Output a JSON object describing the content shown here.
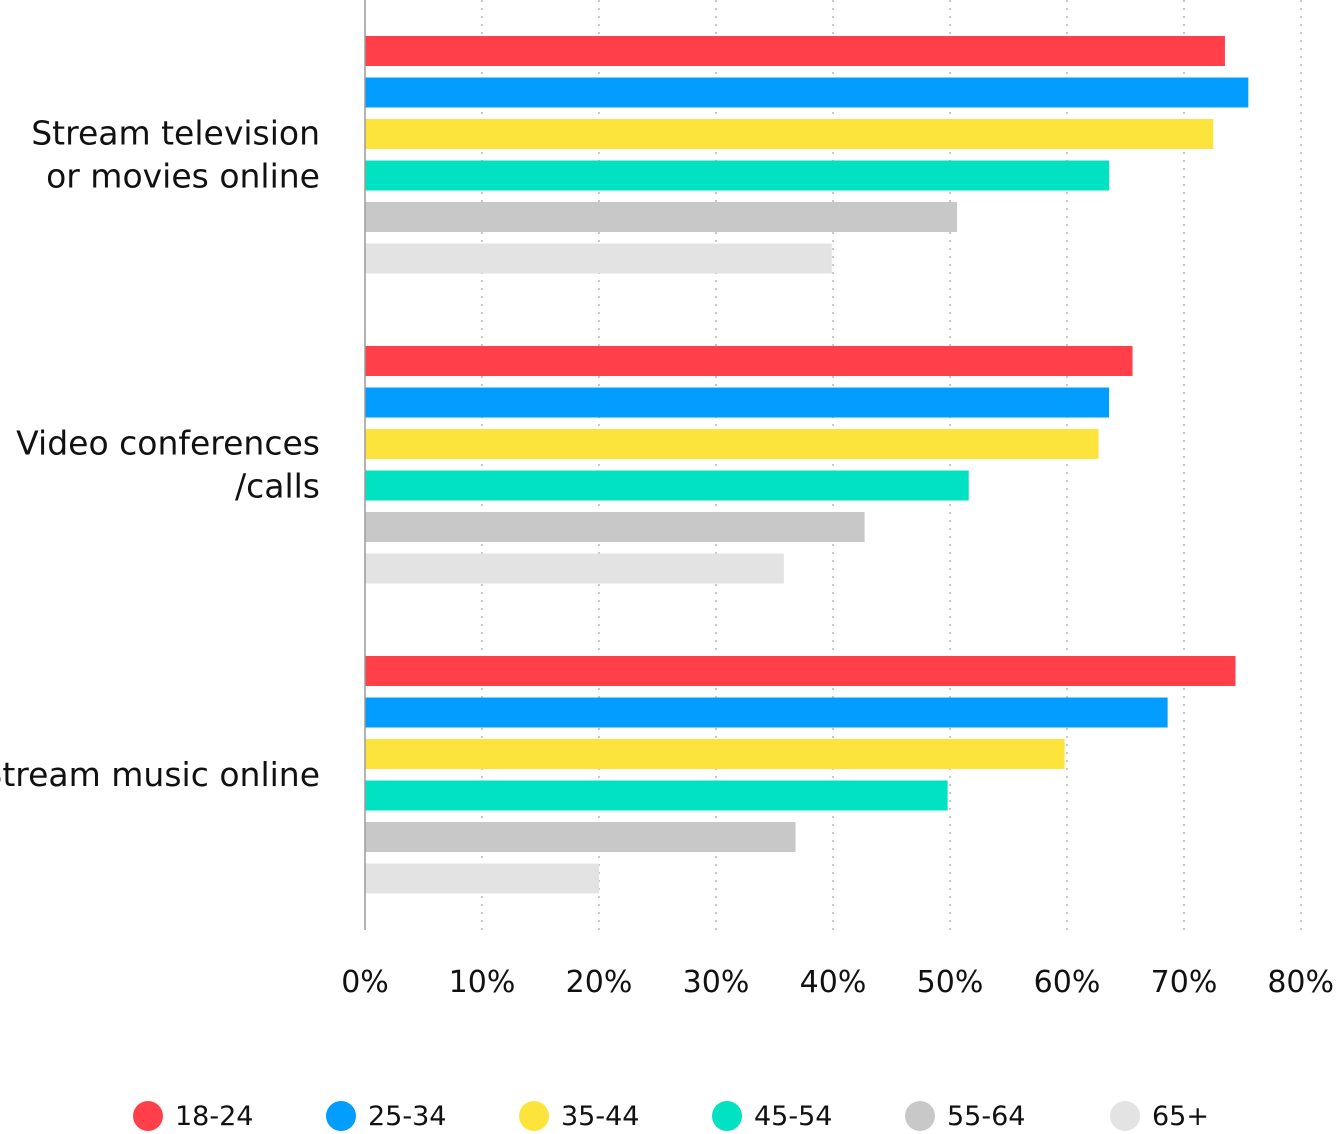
{
  "chart_data": {
    "type": "bar",
    "orientation": "horizontal",
    "categories": [
      [
        "Stream television",
        "or movies online"
      ],
      [
        "Video conferences",
        "/calls"
      ],
      [
        "Stream music online"
      ]
    ],
    "series": [
      {
        "name": "18-24",
        "color": "#ff3f4a",
        "values": [
          73.5,
          65.6,
          74.4
        ]
      },
      {
        "name": "25-34",
        "color": "#039cff",
        "values": [
          75.5,
          63.6,
          68.6
        ]
      },
      {
        "name": "35-44",
        "color": "#fde43c",
        "values": [
          72.5,
          62.7,
          59.8
        ]
      },
      {
        "name": "45-54",
        "color": "#00e2c1",
        "values": [
          63.6,
          51.6,
          49.8
        ]
      },
      {
        "name": "55-64",
        "color": "#c8c8c8",
        "values": [
          50.6,
          42.7,
          36.8
        ]
      },
      {
        "name": "65+",
        "color": "#e3e3e3",
        "values": [
          39.9,
          35.8,
          20.0
        ]
      }
    ],
    "xlim": [
      0,
      80
    ],
    "xticks": [
      "0%",
      "10%",
      "20%",
      "30%",
      "40%",
      "50%",
      "60%",
      "70%",
      "80%"
    ],
    "grid": "vertical dotted",
    "legend_position": "bottom"
  }
}
